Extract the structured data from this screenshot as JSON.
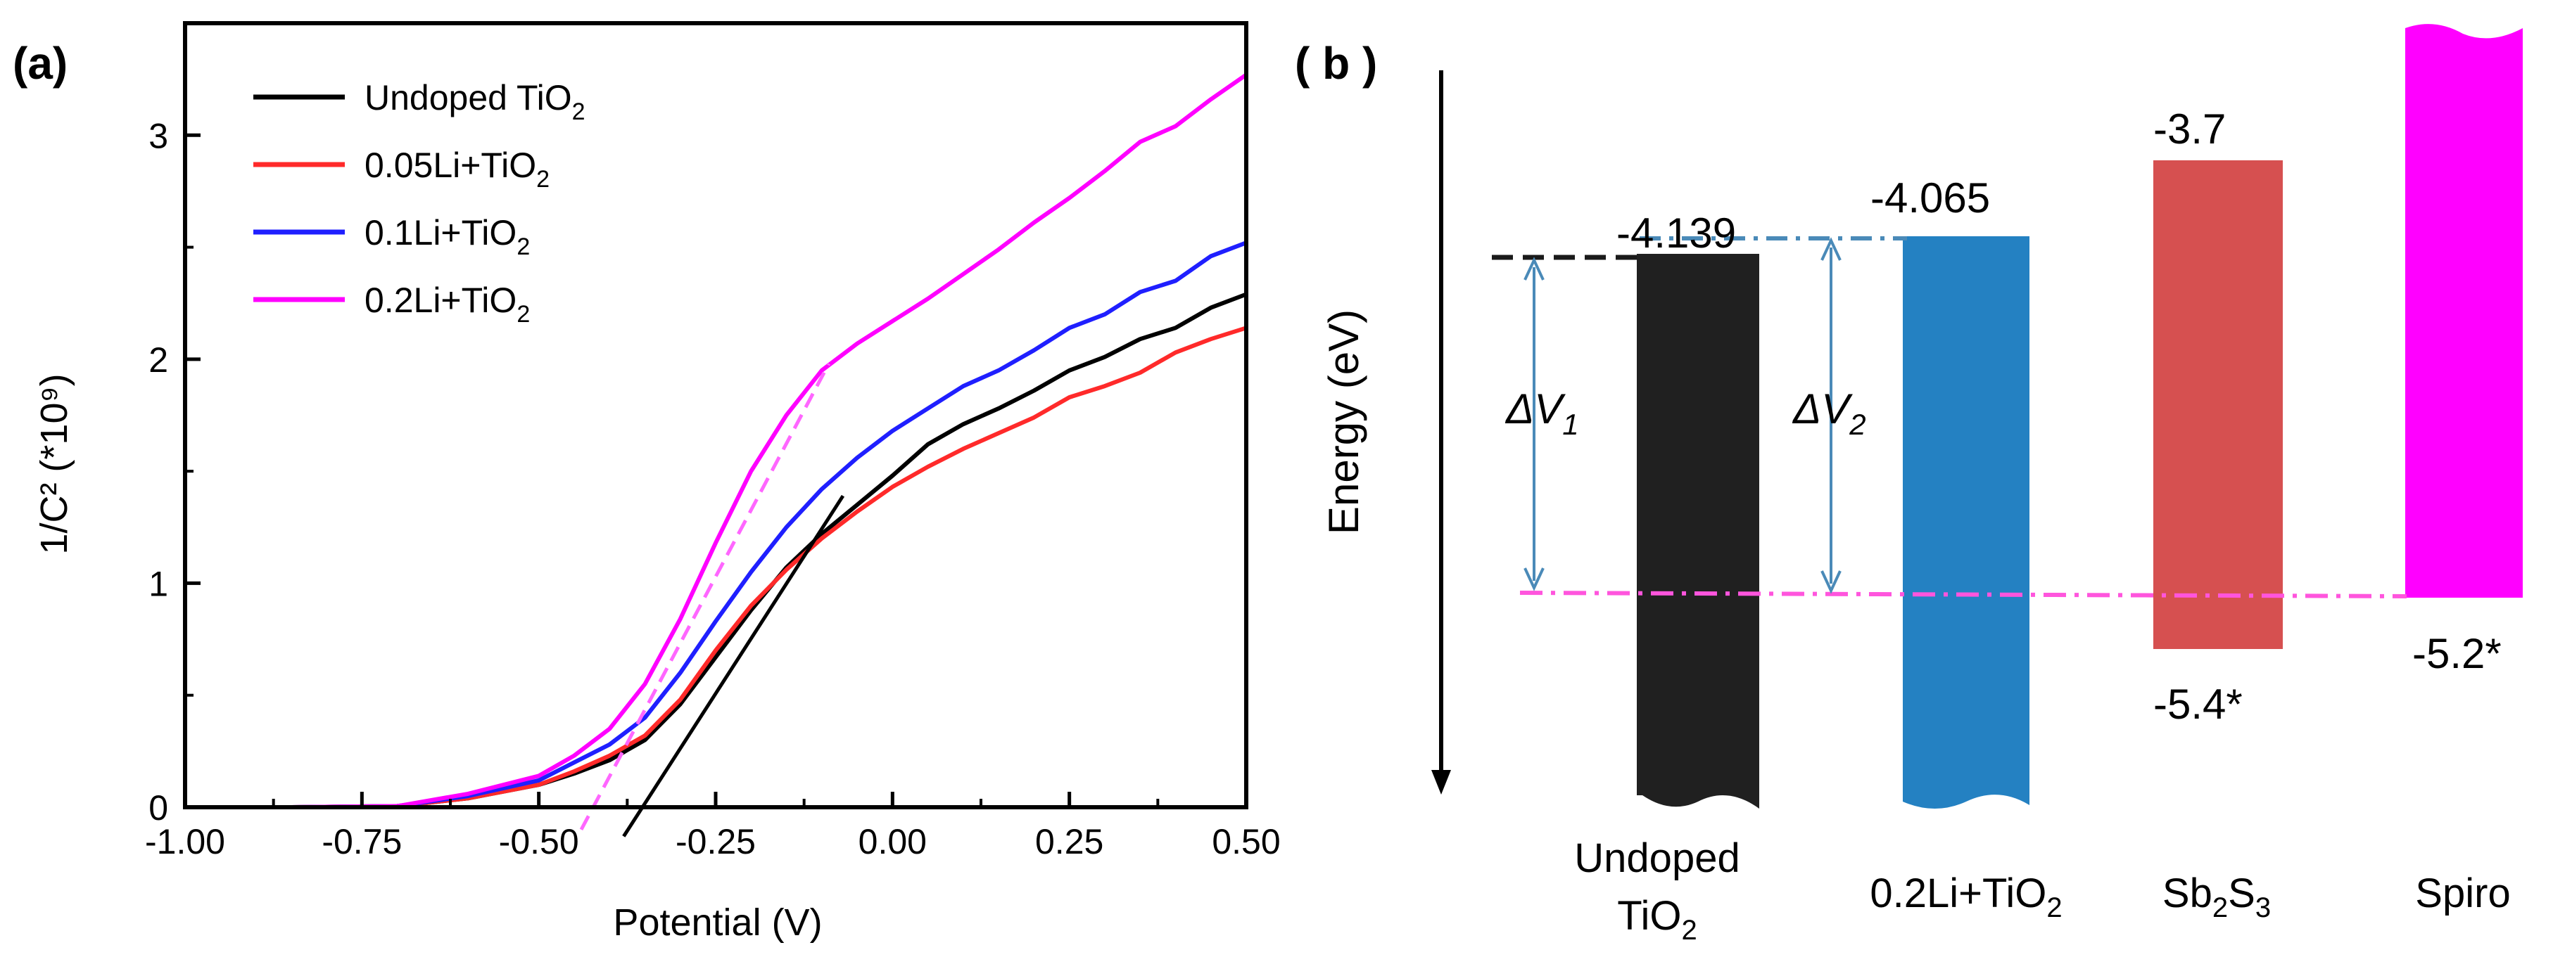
{
  "chart_data": [
    {
      "type": "line",
      "panel_label": "(a)",
      "xlabel": "Potential (V)",
      "ylabel": "1/C² (*10⁹)",
      "xlim": [
        -1.0,
        0.5
      ],
      "ylim": [
        0,
        3.5
      ],
      "xticks": [
        -1.0,
        -0.75,
        -0.5,
        -0.25,
        0.0,
        0.25,
        0.5
      ],
      "xtick_labels": [
        "-1.00",
        "-0.75",
        "-0.50",
        "-0.25",
        "0.00",
        "0.25",
        "0.50"
      ],
      "yticks": [
        0,
        1,
        2,
        3
      ],
      "ytick_labels": [
        "0",
        "1",
        "2",
        "3"
      ],
      "legend_position": "top-left",
      "series": [
        {
          "name": "Undoped TiO2",
          "legend_base": "Undoped TiO",
          "color": "#000000",
          "points": [
            [
              -1.0,
              0
            ],
            [
              -0.85,
              0
            ],
            [
              -0.7,
              0.005
            ],
            [
              -0.6,
              0.04
            ],
            [
              -0.5,
              0.1
            ],
            [
              -0.45,
              0.15
            ],
            [
              -0.4,
              0.21
            ],
            [
              -0.35,
              0.3
            ],
            [
              -0.3,
              0.46
            ],
            [
              -0.25,
              0.67
            ],
            [
              -0.2,
              0.88
            ],
            [
              -0.15,
              1.07
            ],
            [
              -0.1,
              1.22
            ],
            [
              -0.05,
              1.35
            ],
            [
              0.0,
              1.48
            ],
            [
              0.05,
              1.62
            ],
            [
              0.1,
              1.71
            ],
            [
              0.15,
              1.78
            ],
            [
              0.2,
              1.86
            ],
            [
              0.25,
              1.95
            ],
            [
              0.3,
              2.01
            ],
            [
              0.35,
              2.09
            ],
            [
              0.4,
              2.14
            ],
            [
              0.45,
              2.23
            ],
            [
              0.5,
              2.29
            ]
          ]
        },
        {
          "name": "0.05Li+TiO2",
          "legend_base": "0.05Li+TiO",
          "color": "#ff2a2a",
          "points": [
            [
              -1.0,
              0
            ],
            [
              -0.85,
              0
            ],
            [
              -0.7,
              0.005
            ],
            [
              -0.6,
              0.04
            ],
            [
              -0.5,
              0.1
            ],
            [
              -0.45,
              0.16
            ],
            [
              -0.4,
              0.23
            ],
            [
              -0.35,
              0.32
            ],
            [
              -0.3,
              0.48
            ],
            [
              -0.25,
              0.7
            ],
            [
              -0.2,
              0.9
            ],
            [
              -0.15,
              1.06
            ],
            [
              -0.1,
              1.2
            ],
            [
              -0.05,
              1.32
            ],
            [
              0.0,
              1.43
            ],
            [
              0.05,
              1.52
            ],
            [
              0.1,
              1.6
            ],
            [
              0.15,
              1.67
            ],
            [
              0.2,
              1.74
            ],
            [
              0.25,
              1.83
            ],
            [
              0.3,
              1.88
            ],
            [
              0.35,
              1.94
            ],
            [
              0.4,
              2.03
            ],
            [
              0.45,
              2.09
            ],
            [
              0.5,
              2.14
            ]
          ]
        },
        {
          "name": "0.1Li+TiO2",
          "legend_base": "0.1Li+TiO",
          "color": "#1f1fff",
          "points": [
            [
              -1.0,
              0
            ],
            [
              -0.85,
              0
            ],
            [
              -0.7,
              0.005
            ],
            [
              -0.6,
              0.05
            ],
            [
              -0.5,
              0.12
            ],
            [
              -0.45,
              0.2
            ],
            [
              -0.4,
              0.28
            ],
            [
              -0.35,
              0.4
            ],
            [
              -0.3,
              0.6
            ],
            [
              -0.25,
              0.83
            ],
            [
              -0.2,
              1.05
            ],
            [
              -0.15,
              1.25
            ],
            [
              -0.1,
              1.42
            ],
            [
              -0.05,
              1.56
            ],
            [
              0.0,
              1.68
            ],
            [
              0.05,
              1.78
            ],
            [
              0.1,
              1.88
            ],
            [
              0.15,
              1.95
            ],
            [
              0.2,
              2.04
            ],
            [
              0.25,
              2.14
            ],
            [
              0.3,
              2.2
            ],
            [
              0.35,
              2.3
            ],
            [
              0.4,
              2.35
            ],
            [
              0.45,
              2.46
            ],
            [
              0.5,
              2.52
            ]
          ]
        },
        {
          "name": "0.2Li+TiO2",
          "legend_base": "0.2Li+TiO",
          "color": "#ff00ff",
          "points": [
            [
              -1.0,
              0
            ],
            [
              -0.85,
              0
            ],
            [
              -0.7,
              0.005
            ],
            [
              -0.6,
              0.06
            ],
            [
              -0.5,
              0.14
            ],
            [
              -0.45,
              0.23
            ],
            [
              -0.4,
              0.35
            ],
            [
              -0.35,
              0.55
            ],
            [
              -0.3,
              0.84
            ],
            [
              -0.25,
              1.18
            ],
            [
              -0.2,
              1.5
            ],
            [
              -0.15,
              1.75
            ],
            [
              -0.1,
              1.95
            ],
            [
              -0.05,
              2.07
            ],
            [
              0.0,
              2.17
            ],
            [
              0.05,
              2.27
            ],
            [
              0.1,
              2.38
            ],
            [
              0.15,
              2.49
            ],
            [
              0.2,
              2.61
            ],
            [
              0.25,
              2.72
            ],
            [
              0.3,
              2.84
            ],
            [
              0.35,
              2.97
            ],
            [
              0.4,
              3.04
            ],
            [
              0.45,
              3.16
            ],
            [
              0.5,
              3.27
            ]
          ]
        }
      ],
      "fit_lines": [
        {
          "color": "#000000",
          "dashed": false,
          "points": [
            [
              -0.38,
              -0.13
            ],
            [
              -0.07,
              1.39
            ]
          ]
        },
        {
          "color": "#ff66ff",
          "dashed": true,
          "points": [
            [
              -0.44,
              -0.1
            ],
            [
              -0.09,
              1.98
            ]
          ]
        }
      ]
    },
    {
      "type": "bar",
      "panel_label": "( b )",
      "ylabel": "Energy (eV)",
      "annotation_dv1": "ΔV",
      "annotation_dv1_sub": "1",
      "annotation_dv2": "ΔV",
      "annotation_dv2_sub": "2",
      "bars": [
        {
          "name": "Undoped TiO2",
          "label_line1": "Undoped",
          "label_line2": "TiO",
          "label_sub": "2",
          "color": "#202020",
          "top": -4.139,
          "top_label": "-4.139"
        },
        {
          "name": "0.2Li+TiO2",
          "label_line1": "0.2Li+TiO",
          "label_sub": "2",
          "color": "#2481c2",
          "top": -4.065,
          "top_label": "-4.065"
        },
        {
          "name": "Sb2S3",
          "label_pre": "Sb",
          "label_sub1": "2",
          "label_mid": "S",
          "label_sub2": "3",
          "color": "#d65050",
          "top": -3.7,
          "bottom": -5.4,
          "top_label": "-3.7",
          "bottom_label": "-5.4*"
        },
        {
          "name": "Spiro",
          "label_line1": "Spiro",
          "color": "#ff00ff",
          "bottom": -5.2,
          "bottom_label": "-5.2*"
        }
      ]
    }
  ]
}
